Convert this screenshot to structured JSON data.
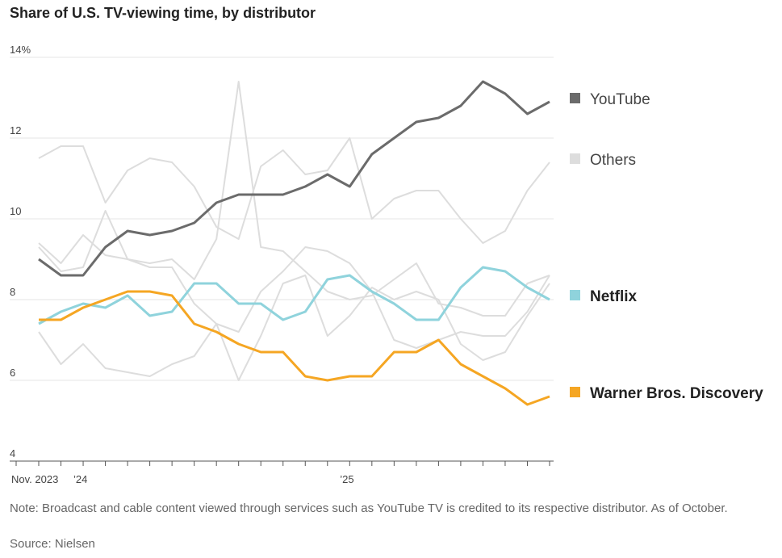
{
  "chart_data": {
    "type": "line",
    "title": "Share of U.S. TV-viewing time, by distributor",
    "ylim": [
      4,
      14
    ],
    "yticks": [
      4,
      6,
      8,
      10,
      12,
      14
    ],
    "ytick_labels": [
      "4",
      "6",
      "8",
      "10",
      "12",
      "14%"
    ],
    "grid": true,
    "legend": "right",
    "x": [
      "2023-11",
      "2023-12",
      "2024-01",
      "2024-02",
      "2024-03",
      "2024-04",
      "2024-05",
      "2024-06",
      "2024-07",
      "2024-08",
      "2024-09",
      "2024-10",
      "2024-11",
      "2024-12",
      "2025-01",
      "2025-02",
      "2025-03",
      "2025-04",
      "2025-05",
      "2025-06",
      "2025-07",
      "2025-08",
      "2025-09",
      "2025-10"
    ],
    "xtick_labels": [
      {
        "index": 0,
        "label": "Nov. 2023"
      },
      {
        "index": 2,
        "label": "’24"
      },
      {
        "index": 14,
        "label": "’25"
      }
    ],
    "series": [
      {
        "name": "YouTube",
        "color": "#6b6b6b",
        "emphasis": true,
        "values": [
          9.0,
          8.6,
          8.6,
          9.3,
          9.7,
          9.6,
          9.7,
          9.9,
          10.4,
          10.6,
          10.6,
          10.6,
          10.8,
          11.1,
          10.8,
          11.6,
          12.0,
          12.4,
          12.5,
          12.8,
          13.4,
          13.1,
          12.6,
          12.9
        ]
      },
      {
        "name": "Netflix",
        "color": "#8fd3dc",
        "emphasis": true,
        "values": [
          7.4,
          7.7,
          7.9,
          7.8,
          8.1,
          7.6,
          7.7,
          8.4,
          8.4,
          7.9,
          7.9,
          7.5,
          7.7,
          8.5,
          8.6,
          8.2,
          7.9,
          7.5,
          7.5,
          8.3,
          8.8,
          8.7,
          8.3,
          8.0
        ]
      },
      {
        "name": "Warner Bros. Discovery",
        "color": "#f5a623",
        "emphasis": true,
        "values": [
          7.5,
          7.5,
          7.8,
          8.0,
          8.2,
          8.2,
          8.1,
          7.4,
          7.2,
          6.9,
          6.7,
          6.7,
          6.1,
          6.0,
          6.1,
          6.1,
          6.7,
          6.7,
          7.0,
          6.4,
          6.1,
          5.8,
          5.4,
          5.6
        ]
      }
    ],
    "others": {
      "name": "Others",
      "color": "#dddddd",
      "lines": [
        [
          11.5,
          11.8,
          11.8,
          10.4,
          11.2,
          11.5,
          11.4,
          10.8,
          9.8,
          9.5,
          11.3,
          11.7,
          11.1,
          11.2,
          12.0,
          10.0,
          10.5,
          10.7,
          10.7,
          10.0,
          9.4,
          9.7,
          10.7,
          11.4
        ],
        [
          9.4,
          8.9,
          9.6,
          9.1,
          9.0,
          8.9,
          9.0,
          8.5,
          9.5,
          13.4,
          9.3,
          9.2,
          8.7,
          8.2,
          8.0,
          8.1,
          8.5,
          8.9,
          7.9,
          7.8,
          7.6,
          7.6,
          8.4,
          8.6
        ],
        [
          9.3,
          8.7,
          8.8,
          10.2,
          9.0,
          8.8,
          8.8,
          7.9,
          7.4,
          7.2,
          8.2,
          8.7,
          9.3,
          9.2,
          8.9,
          8.2,
          7.0,
          6.8,
          7.0,
          7.2,
          7.1,
          7.1,
          7.7,
          8.6
        ],
        [
          7.2,
          6.4,
          6.9,
          6.3,
          6.2,
          6.1,
          6.4,
          6.6,
          7.4,
          6.0,
          7.1,
          8.4,
          8.6,
          7.1,
          7.6,
          8.3,
          8.0,
          8.2,
          8.0,
          6.9,
          6.5,
          6.7,
          7.6,
          8.4
        ]
      ]
    }
  },
  "note": "Note: Broadcast and cable content viewed through services such as YouTube TV is credited to its respective distributor. As of October.",
  "source": "Source: Nielsen"
}
